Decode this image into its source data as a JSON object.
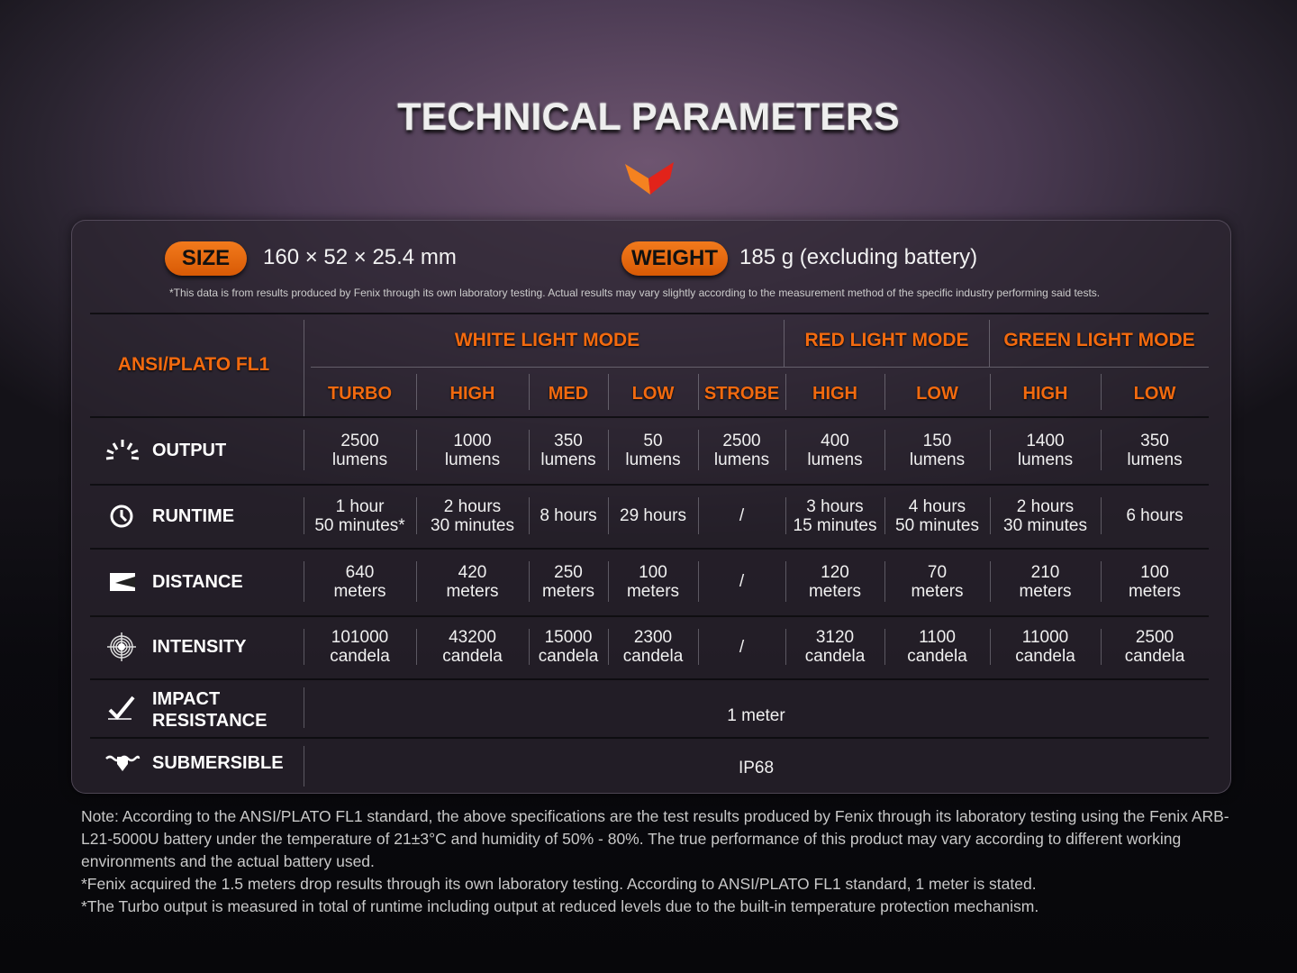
{
  "title": "TECHNICAL PARAMETERS",
  "colors": {
    "accent": "#f26a0f",
    "logo_orange": "#f58220",
    "logo_red": "#e2231a"
  },
  "size": {
    "label": "SIZE",
    "value": "160 × 52 ×  25.4 mm"
  },
  "weight": {
    "label": "WEIGHT",
    "value": "185 g (excluding battery)"
  },
  "disclaimer": "*This data is from results produced by Fenix through its own laboratory testing. Actual results may vary slightly according to the measurement method of the specific industry performing said tests.",
  "table": {
    "standard": "ANSI/PLATO FL1",
    "mode_groups": [
      "WHITE LIGHT MODE",
      "RED LIGHT MODE",
      "GREEN LIGHT MODE"
    ],
    "modes": [
      "TURBO",
      "HIGH",
      "MED",
      "LOW",
      "STROBE",
      "HIGH",
      "LOW",
      "HIGH",
      "LOW"
    ],
    "rows": [
      {
        "label": "OUTPUT",
        "icon": "output-icon",
        "values": [
          "2500\nlumens",
          "1000\nlumens",
          "350\nlumens",
          "50\nlumens",
          "2500\nlumens",
          "400\nlumens",
          "150\nlumens",
          "1400\nlumens",
          "350\nlumens"
        ]
      },
      {
        "label": "RUNTIME",
        "icon": "clock-icon",
        "values": [
          "1 hour\n50 minutes*",
          "2 hours\n30 minutes",
          "8 hours",
          "29 hours",
          "/",
          "3 hours\n15 minutes",
          "4 hours\n50 minutes",
          "2 hours\n30 minutes",
          "6 hours"
        ]
      },
      {
        "label": "DISTANCE",
        "icon": "distance-icon",
        "values": [
          "640\nmeters",
          "420\nmeters",
          "250\nmeters",
          "100\nmeters",
          "/",
          "120\nmeters",
          "70\nmeters",
          "210\nmeters",
          "100\nmeters"
        ]
      },
      {
        "label": "INTENSITY",
        "icon": "target-icon",
        "values": [
          "101000\ncandela",
          "43200\ncandela",
          "15000\ncandela",
          "2300\ncandela",
          "/",
          "3120\ncandela",
          "1100\ncandela",
          "11000\ncandela",
          "2500\ncandela"
        ]
      }
    ],
    "impact": {
      "label": "IMPACT\nRESISTANCE",
      "icon": "impact-icon",
      "value": "1 meter"
    },
    "submersible": {
      "label": "SUBMERSIBLE",
      "icon": "submersible-icon",
      "value": "IP68"
    }
  },
  "notes": [
    "Note: According to the ANSI/PLATO FL1 standard, the above specifications are the test results produced by Fenix through its laboratory testing using the Fenix ARB-L21-5000U battery under the temperature of 21±3°C and humidity of 50% - 80%. The true performance of this product may vary according to different working environments and the actual battery used.",
    "*Fenix acquired the 1.5 meters drop results through its own laboratory testing. According to ANSI/PLATO FL1 standard, 1 meter is stated.",
    "*The Turbo output is measured in total of runtime including output at reduced levels due to the built-in temperature protection mechanism."
  ]
}
